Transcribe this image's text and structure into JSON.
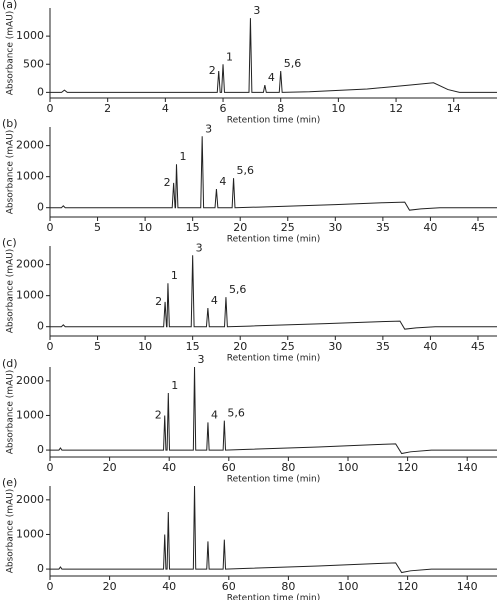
{
  "chart_data": [
    {
      "type": "line",
      "label": "(a)",
      "xlabel": "Retention time (min)",
      "ylabel": "Absorbance (mAU)",
      "color": "#222222",
      "xlim": [
        0,
        15.5
      ],
      "xticks": [
        0,
        2,
        4,
        6,
        8,
        10,
        12,
        14
      ],
      "ylim": [
        -100,
        1500
      ],
      "yticks": [
        0,
        500,
        1000
      ],
      "x": [
        0,
        0.4,
        0.5,
        0.6,
        5.8,
        5.85,
        5.9,
        5.95,
        6.0,
        6.05,
        6.9,
        6.95,
        7.0,
        7.4,
        7.45,
        7.5,
        7.95,
        8.0,
        8.05,
        9,
        11,
        12.5,
        13.3,
        13.8,
        14.2,
        15.5
      ],
      "y": [
        0,
        0,
        40,
        0,
        0,
        380,
        0,
        0,
        500,
        0,
        0,
        1320,
        0,
        0,
        130,
        0,
        0,
        380,
        0,
        10,
        60,
        130,
        170,
        50,
        0,
        0
      ],
      "annotations": [
        {
          "text": "2",
          "x": 5.85,
          "y": 380
        },
        {
          "text": "1",
          "x": 6.0,
          "y": 500
        },
        {
          "text": "3",
          "x": 6.95,
          "y": 1320
        },
        {
          "text": "4",
          "x": 7.45,
          "y": 130
        },
        {
          "text": "5,6",
          "x": 8.0,
          "y": 380
        }
      ]
    },
    {
      "type": "line",
      "label": "(b)",
      "xlabel": "Retention time (min)",
      "ylabel": "Absorbance (mAU)",
      "color": "#222222",
      "xlim": [
        0,
        47
      ],
      "xticks": [
        0,
        5,
        10,
        15,
        20,
        25,
        30,
        35,
        40,
        45
      ],
      "ylim": [
        -300,
        2600
      ],
      "yticks": [
        0,
        1000,
        2000
      ],
      "x": [
        0,
        1.2,
        1.4,
        1.6,
        12.85,
        13.0,
        13.15,
        13.2,
        13.3,
        13.45,
        15.85,
        16.0,
        16.15,
        17.35,
        17.5,
        17.65,
        19.15,
        19.3,
        19.45,
        22,
        30,
        35,
        37.3,
        37.8,
        39,
        41,
        47
      ],
      "y": [
        0,
        0,
        60,
        0,
        0,
        800,
        0,
        0,
        1400,
        0,
        0,
        2300,
        0,
        0,
        600,
        0,
        0,
        950,
        0,
        20,
        100,
        160,
        180,
        -80,
        -40,
        0,
        0
      ],
      "annotations": [
        {
          "text": "2",
          "x": 13.0,
          "y": 800
        },
        {
          "text": "1",
          "x": 13.3,
          "y": 1400
        },
        {
          "text": "3",
          "x": 16.0,
          "y": 2300
        },
        {
          "text": "4",
          "x": 17.5,
          "y": 600
        },
        {
          "text": "5,6",
          "x": 19.3,
          "y": 950
        }
      ]
    },
    {
      "type": "line",
      "label": "(c)",
      "xlabel": "Retention time (min)",
      "ylabel": "Absorbance (mAU)",
      "color": "#222222",
      "xlim": [
        0,
        47
      ],
      "xticks": [
        0,
        5,
        10,
        15,
        20,
        25,
        30,
        35,
        40,
        45
      ],
      "ylim": [
        -300,
        2600
      ],
      "yticks": [
        0,
        1000,
        2000
      ],
      "x": [
        0,
        1.2,
        1.4,
        1.6,
        11.95,
        12.1,
        12.25,
        12.3,
        12.4,
        12.55,
        14.85,
        15.0,
        15.15,
        16.45,
        16.6,
        16.75,
        18.35,
        18.5,
        18.65,
        21,
        29,
        34.5,
        36.8,
        37.3,
        38.5,
        40.5,
        47
      ],
      "y": [
        0,
        0,
        60,
        0,
        0,
        800,
        0,
        0,
        1400,
        0,
        0,
        2300,
        0,
        0,
        600,
        0,
        0,
        950,
        0,
        20,
        100,
        160,
        180,
        -80,
        -40,
        0,
        0
      ],
      "annotations": [
        {
          "text": "2",
          "x": 12.1,
          "y": 800
        },
        {
          "text": "1",
          "x": 12.4,
          "y": 1400
        },
        {
          "text": "3",
          "x": 15.0,
          "y": 2300
        },
        {
          "text": "4",
          "x": 16.6,
          "y": 600
        },
        {
          "text": "5,6",
          "x": 18.5,
          "y": 950
        }
      ]
    },
    {
      "type": "line",
      "label": "(d)",
      "xlabel": "Retention time (min)",
      "ylabel": "Absorbance (mAU)",
      "color": "#222222",
      "xlim": [
        0,
        150
      ],
      "xticks": [
        0,
        20,
        40,
        60,
        80,
        100,
        120,
        140
      ],
      "ylim": [
        -200,
        2400
      ],
      "yticks": [
        0,
        1000,
        2000
      ],
      "x": [
        0,
        3,
        3.5,
        4,
        38.1,
        38.5,
        38.9,
        39.3,
        39.7,
        40.1,
        48.1,
        48.5,
        48.9,
        52.6,
        53,
        53.4,
        58.1,
        58.5,
        58.9,
        66,
        90,
        110,
        116,
        118,
        121,
        128,
        150
      ],
      "y": [
        0,
        0,
        60,
        0,
        0,
        1000,
        0,
        0,
        1650,
        0,
        0,
        2400,
        0,
        0,
        800,
        0,
        0,
        850,
        0,
        20,
        90,
        160,
        180,
        -100,
        -50,
        0,
        0
      ],
      "annotations": [
        {
          "text": "2",
          "x": 38.5,
          "y": 1000
        },
        {
          "text": "1",
          "x": 39.7,
          "y": 1650
        },
        {
          "text": "3",
          "x": 48.5,
          "y": 2400
        },
        {
          "text": "4",
          "x": 53,
          "y": 800
        },
        {
          "text": "5,6",
          "x": 58.5,
          "y": 850
        }
      ]
    },
    {
      "type": "line",
      "label": "(e)",
      "xlabel": "Retention time (min)",
      "ylabel": "Absorbance (mAU)",
      "color": "#222222",
      "xlim": [
        0,
        150
      ],
      "xticks": [
        0,
        20,
        40,
        60,
        80,
        100,
        120,
        140
      ],
      "ylim": [
        -200,
        2400
      ],
      "yticks": [
        0,
        1000,
        2000
      ],
      "x": [
        0,
        3,
        3.5,
        4,
        38.1,
        38.5,
        38.9,
        39.3,
        39.7,
        40.1,
        48.1,
        48.5,
        48.9,
        52.6,
        53,
        53.4,
        58.1,
        58.5,
        58.9,
        66,
        90,
        110,
        116,
        118,
        121,
        128,
        150
      ],
      "y": [
        0,
        0,
        60,
        0,
        0,
        1000,
        0,
        0,
        1650,
        0,
        0,
        2400,
        0,
        0,
        800,
        0,
        0,
        850,
        0,
        20,
        90,
        160,
        180,
        -100,
        -50,
        0,
        0
      ],
      "annotations": []
    }
  ]
}
